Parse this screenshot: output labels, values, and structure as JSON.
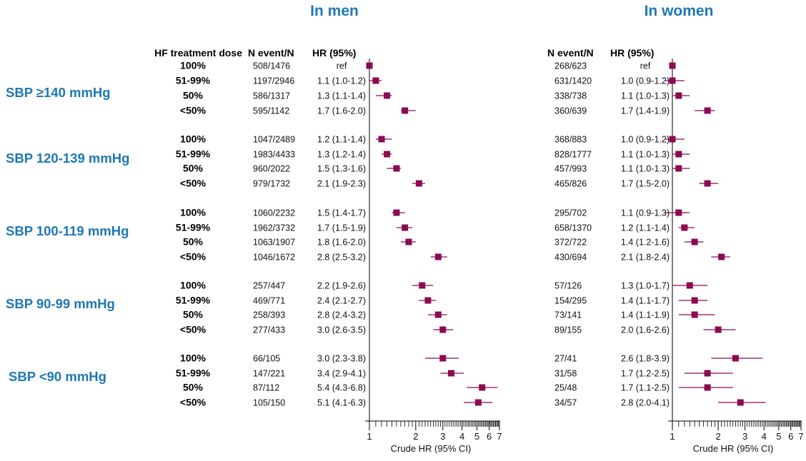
{
  "header": {
    "men_title": "In men",
    "women_title": "In women"
  },
  "columns": {
    "dose": "HF treatment dose",
    "n": "N event/N",
    "hr": "HR (95%)"
  },
  "groups": [
    {
      "label": "SBP ≥140 mmHg",
      "rows": [
        {
          "dose": "100%",
          "men": {
            "n": "508/1476",
            "hr": "ref",
            "est": 1.0,
            "lo": 1.0,
            "hi": 1.0
          },
          "women": {
            "n": "268/623",
            "hr": "ref",
            "est": 1.0,
            "lo": 1.0,
            "hi": 1.0
          }
        },
        {
          "dose": "51-99%",
          "men": {
            "n": "1197/2946",
            "hr": "1.1 (1.0-1.2)",
            "est": 1.1,
            "lo": 1.0,
            "hi": 1.2
          },
          "women": {
            "n": "631/1420",
            "hr": "1.0 (0.9-1.2)",
            "est": 1.0,
            "lo": 0.9,
            "hi": 1.2
          }
        },
        {
          "dose": "50%",
          "men": {
            "n": "586/1317",
            "hr": "1.3 (1.1-1.4)",
            "est": 1.3,
            "lo": 1.1,
            "hi": 1.4
          },
          "women": {
            "n": "338/738",
            "hr": "1.1 (1.0-1.3)",
            "est": 1.1,
            "lo": 1.0,
            "hi": 1.3
          }
        },
        {
          "dose": "<50%",
          "men": {
            "n": "595/1142",
            "hr": "1.7 (1.6-2.0)",
            "est": 1.7,
            "lo": 1.6,
            "hi": 2.0
          },
          "women": {
            "n": "360/639",
            "hr": "1.7 (1.4-1.9)",
            "est": 1.7,
            "lo": 1.4,
            "hi": 1.9
          }
        }
      ]
    },
    {
      "label": "SBP 120-139 mmHg",
      "rows": [
        {
          "dose": "100%",
          "men": {
            "n": "1047/2489",
            "hr": "1.2 (1.1-1.4)",
            "est": 1.2,
            "lo": 1.1,
            "hi": 1.4
          },
          "women": {
            "n": "368/883",
            "hr": "1.0 (0.9-1.2)",
            "est": 1.0,
            "lo": 0.9,
            "hi": 1.2
          }
        },
        {
          "dose": "51-99%",
          "men": {
            "n": "1983/4433",
            "hr": "1.3 (1.2-1.4)",
            "est": 1.3,
            "lo": 1.2,
            "hi": 1.4
          },
          "women": {
            "n": "828/1777",
            "hr": "1.1 (1.0-1.3)",
            "est": 1.1,
            "lo": 1.0,
            "hi": 1.3
          }
        },
        {
          "dose": "50%",
          "men": {
            "n": "960/2022",
            "hr": "1.5 (1.3-1.6)",
            "est": 1.5,
            "lo": 1.3,
            "hi": 1.6
          },
          "women": {
            "n": "457/993",
            "hr": "1.1 (1.0-1.3)",
            "est": 1.1,
            "lo": 1.0,
            "hi": 1.3
          }
        },
        {
          "dose": "<50%",
          "men": {
            "n": "979/1732",
            "hr": "2.1 (1.9-2.3)",
            "est": 2.1,
            "lo": 1.9,
            "hi": 2.3
          },
          "women": {
            "n": "465/826",
            "hr": "1.7 (1.5-2.0)",
            "est": 1.7,
            "lo": 1.5,
            "hi": 2.0
          }
        }
      ]
    },
    {
      "label": "SBP 100-119 mmHg",
      "rows": [
        {
          "dose": "100%",
          "men": {
            "n": "1060/2232",
            "hr": "1.5 (1.4-1.7)",
            "est": 1.5,
            "lo": 1.4,
            "hi": 1.7
          },
          "women": {
            "n": "295/702",
            "hr": "1.1 (0.9-1.3)",
            "est": 1.1,
            "lo": 0.9,
            "hi": 1.3
          }
        },
        {
          "dose": "51-99%",
          "men": {
            "n": "1962/3732",
            "hr": "1.7 (1.5-1.9)",
            "est": 1.7,
            "lo": 1.5,
            "hi": 1.9
          },
          "women": {
            "n": "658/1370",
            "hr": "1.2 (1.1-1.4)",
            "est": 1.2,
            "lo": 1.1,
            "hi": 1.4
          }
        },
        {
          "dose": "50%",
          "men": {
            "n": "1063/1907",
            "hr": "1.8 (1.6-2.0)",
            "est": 1.8,
            "lo": 1.6,
            "hi": 2.0
          },
          "women": {
            "n": "372/722",
            "hr": "1.4 (1.2-1.6)",
            "est": 1.4,
            "lo": 1.2,
            "hi": 1.6
          }
        },
        {
          "dose": "<50%",
          "men": {
            "n": "1046/1672",
            "hr": "2.8 (2.5-3.2)",
            "est": 2.8,
            "lo": 2.5,
            "hi": 3.2
          },
          "women": {
            "n": "430/694",
            "hr": "2.1 (1.8-2.4)",
            "est": 2.1,
            "lo": 1.8,
            "hi": 2.4
          }
        }
      ]
    },
    {
      "label": "SBP 90-99 mmHg",
      "rows": [
        {
          "dose": "100%",
          "men": {
            "n": "257/447",
            "hr": "2.2 (1.9-2.6)",
            "est": 2.2,
            "lo": 1.9,
            "hi": 2.6
          },
          "women": {
            "n": "57/126",
            "hr": "1.3 (1.0-1.7)",
            "est": 1.3,
            "lo": 1.0,
            "hi": 1.7
          }
        },
        {
          "dose": "51-99%",
          "men": {
            "n": "469/771",
            "hr": "2.4 (2.1-2.7)",
            "est": 2.4,
            "lo": 2.1,
            "hi": 2.7
          },
          "women": {
            "n": "154/295",
            "hr": "1.4 (1.1-1.7)",
            "est": 1.4,
            "lo": 1.1,
            "hi": 1.7
          }
        },
        {
          "dose": "50%",
          "men": {
            "n": "258/393",
            "hr": "2.8 (2.4-3.2)",
            "est": 2.8,
            "lo": 2.4,
            "hi": 3.2
          },
          "women": {
            "n": "73/141",
            "hr": "1.4 (1.1-1.9)",
            "est": 1.4,
            "lo": 1.1,
            "hi": 1.9
          }
        },
        {
          "dose": "<50%",
          "men": {
            "n": "277/433",
            "hr": "3.0 (2.6-3.5)",
            "est": 3.0,
            "lo": 2.6,
            "hi": 3.5
          },
          "women": {
            "n": "89/155",
            "hr": "2.0 (1.6-2.6)",
            "est": 2.0,
            "lo": 1.6,
            "hi": 2.6
          }
        }
      ]
    },
    {
      "label": "SBP <90 mmHg",
      "rows": [
        {
          "dose": "100%",
          "men": {
            "n": "66/105",
            "hr": "3.0 (2.3-3.8)",
            "est": 3.0,
            "lo": 2.3,
            "hi": 3.8
          },
          "women": {
            "n": "27/41",
            "hr": "2.6 (1.8-3.9)",
            "est": 2.6,
            "lo": 1.8,
            "hi": 3.9
          }
        },
        {
          "dose": "51-99%",
          "men": {
            "n": "147/221",
            "hr": "3.4 (2.9-4.1)",
            "est": 3.4,
            "lo": 2.9,
            "hi": 4.1
          },
          "women": {
            "n": "31/58",
            "hr": "1.7 (1.2-2.5)",
            "est": 1.7,
            "lo": 1.2,
            "hi": 2.5
          }
        },
        {
          "dose": "50%",
          "men": {
            "n": "87/112",
            "hr": "5.4 (4.3-6.8)",
            "est": 5.4,
            "lo": 4.3,
            "hi": 6.8
          },
          "women": {
            "n": "25/48",
            "hr": "1.7 (1.1-2.5)",
            "est": 1.7,
            "lo": 1.1,
            "hi": 2.5
          }
        },
        {
          "dose": "<50%",
          "men": {
            "n": "105/150",
            "hr": "5.1 (4.1-6.3)",
            "est": 5.1,
            "lo": 4.1,
            "hi": 6.3
          },
          "women": {
            "n": "34/57",
            "hr": "2.8 (2.0-4.1)",
            "est": 2.8,
            "lo": 2.0,
            "hi": 4.1
          }
        }
      ]
    }
  ],
  "chart_data": {
    "type": "forest",
    "scale": "log",
    "xlabel": "Crude HR (95% CI)",
    "xlim": [
      1,
      7
    ],
    "ticks": [
      1,
      2,
      3,
      4,
      5,
      6,
      7
    ],
    "tick_labels": [
      "1",
      "2",
      "3",
      "4",
      "5",
      "6",
      "7"
    ],
    "panels": [
      "In men",
      "In women"
    ],
    "marker_color": "#8b0a50"
  },
  "colors": {
    "group_label": "#1f78b4",
    "marker": "#8b0a50"
  }
}
